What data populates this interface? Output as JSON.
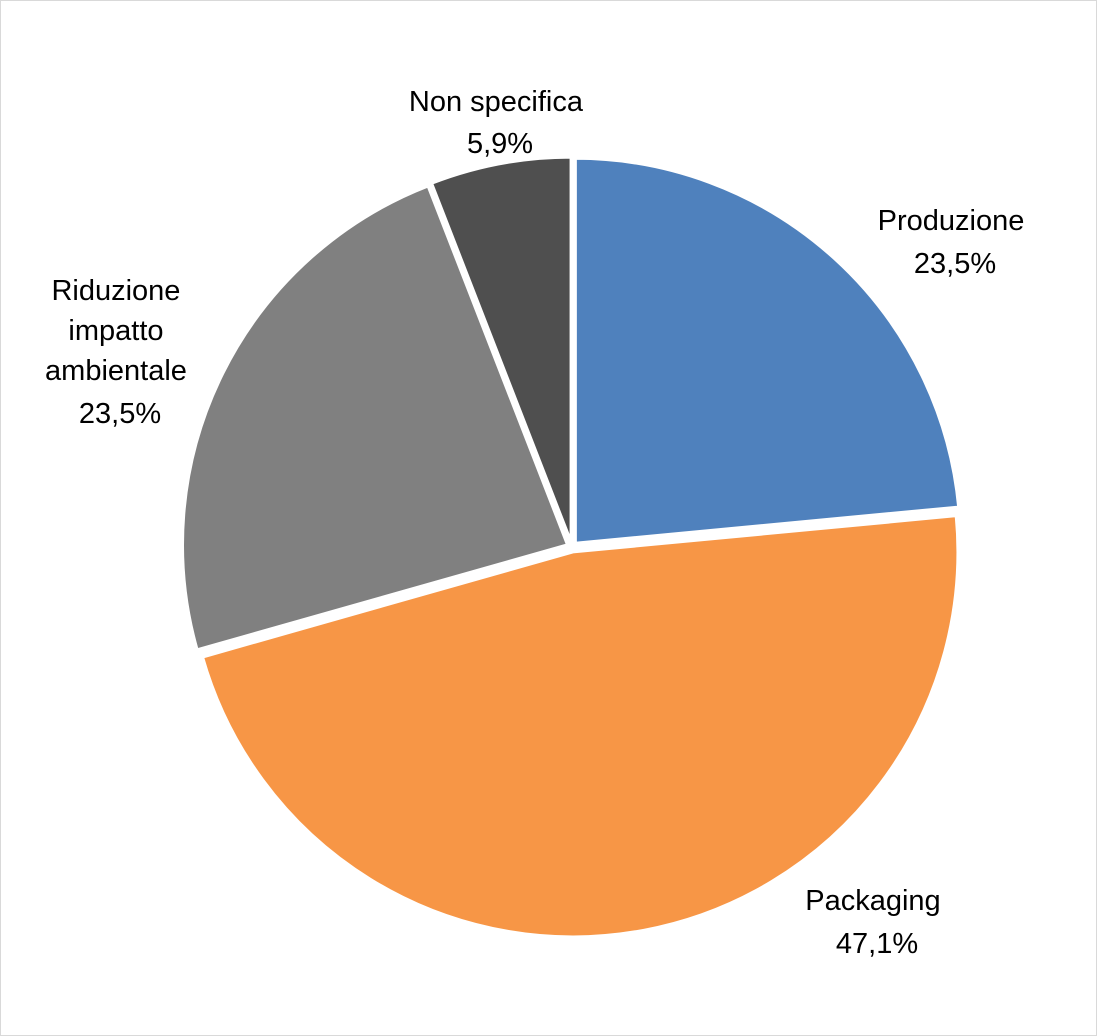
{
  "chart_data": {
    "type": "pie",
    "title": "",
    "start_angle_deg": 0,
    "direction": "clockwise",
    "slices": [
      {
        "name": "Produzione",
        "value": 23.5,
        "label": "23,5%",
        "color": "#4F81BD"
      },
      {
        "name": "Packaging",
        "value": 47.1,
        "label": "47,1%",
        "color": "#F79646"
      },
      {
        "name": "Riduzione impatto ambientale",
        "label_lines": [
          "Riduzione",
          "impatto",
          "ambientale"
        ],
        "value": 23.5,
        "label": "23,5%",
        "color": "#808080"
      },
      {
        "name": "Non specifica",
        "value": 5.9,
        "label": "5,9%",
        "color": "#4F4F4F"
      }
    ],
    "legend": "none",
    "data_labels": "category and percentage, outside end"
  }
}
